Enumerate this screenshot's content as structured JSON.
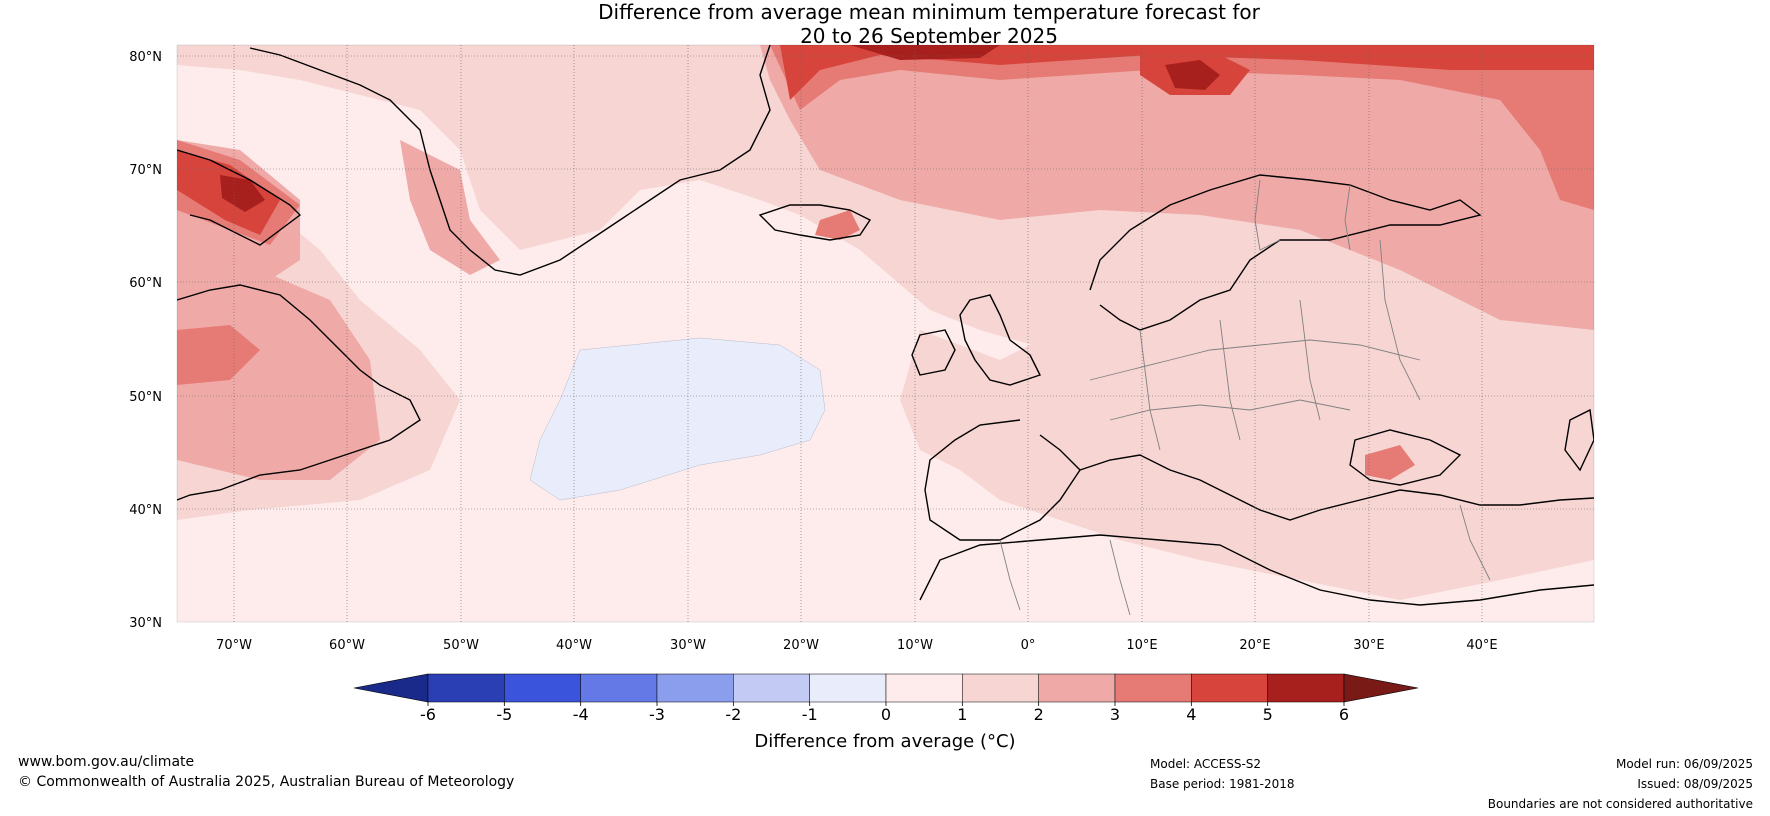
{
  "title": {
    "line1": "Difference from average mean minimum temperature forecast for",
    "line2": "20 to 26 September 2025"
  },
  "map": {
    "lat_labels": [
      "80°N",
      "70°N",
      "60°N",
      "50°N",
      "40°N",
      "30°N"
    ],
    "lon_labels": [
      "70°W",
      "60°W",
      "50°W",
      "40°W",
      "30°W",
      "20°W",
      "10°W",
      "0°",
      "10°E",
      "20°E",
      "30°E",
      "40°E"
    ],
    "land_color": "#f6d5d3",
    "ocean_color": "#fde9e7"
  },
  "colorbar": {
    "title": "Difference from average (°C)",
    "ticks": [
      "-6",
      "-5",
      "-4",
      "-3",
      "-2",
      "-1",
      "0",
      "1",
      "2",
      "3",
      "4",
      "5",
      "6"
    ],
    "colors": [
      "#1a2a8a",
      "#2a3fb4",
      "#3a55dc",
      "#6478e6",
      "#8b9ded",
      "#c3cbf4",
      "#e8ecfb",
      "#fdeceb",
      "#f6d5d3",
      "#efaaa8",
      "#e67b76",
      "#d6443c",
      "#a8201d",
      "#7a1a16"
    ]
  },
  "footer": {
    "website": "www.bom.gov.au/climate",
    "copyright": "© Commonwealth of Australia 2025, Australian Bureau of Meteorology",
    "model": "Model: ACCESS-S2",
    "base_period": "Base period: 1981-2018",
    "model_run": "Model run: 06/09/2025",
    "issued": "Issued: 08/09/2025",
    "disclaimer": "Boundaries are not considered authoritative"
  }
}
